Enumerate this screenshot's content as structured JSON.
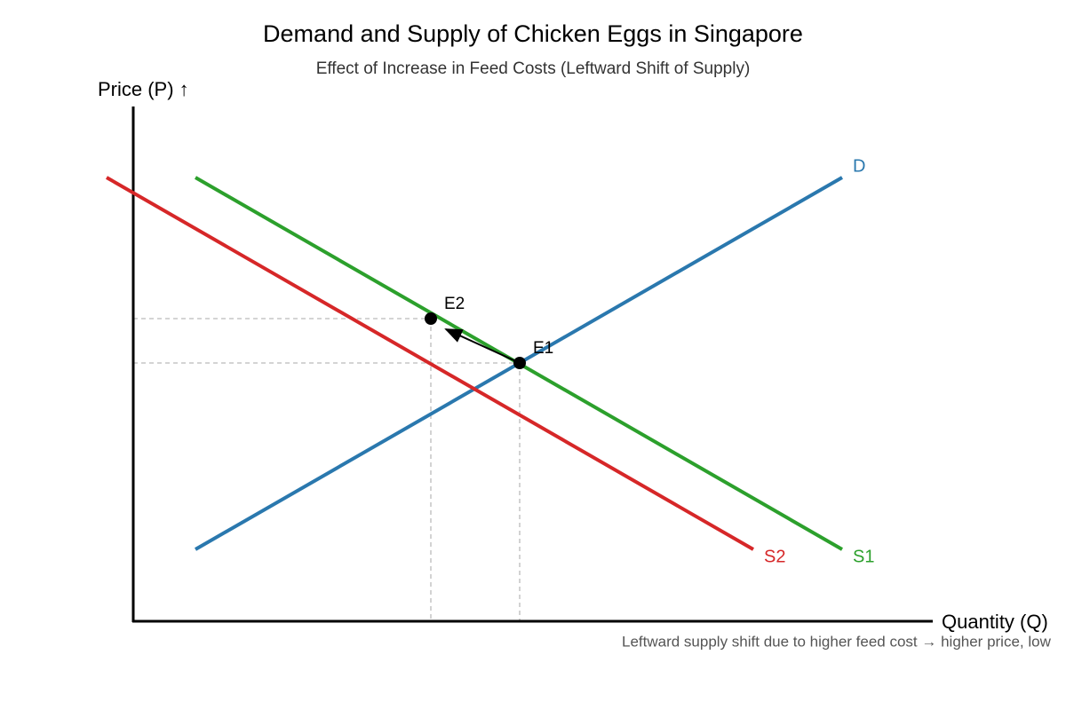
{
  "title": "Demand and Supply of Chicken Eggs in Singapore",
  "subtitle": "Effect of Increase in Feed Costs (Leftward Shift of Supply)",
  "axes": {
    "y_label": "Price (P) ↑",
    "x_label": "Quantity (Q)"
  },
  "curves": [
    {
      "label": "D"
    },
    {
      "label": "S1"
    },
    {
      "label": "S2"
    }
  ],
  "points": [
    {
      "label": "E1"
    },
    {
      "label": "E2"
    }
  ],
  "note": "Leftward supply shift due to higher feed cost → higher price, low"
}
